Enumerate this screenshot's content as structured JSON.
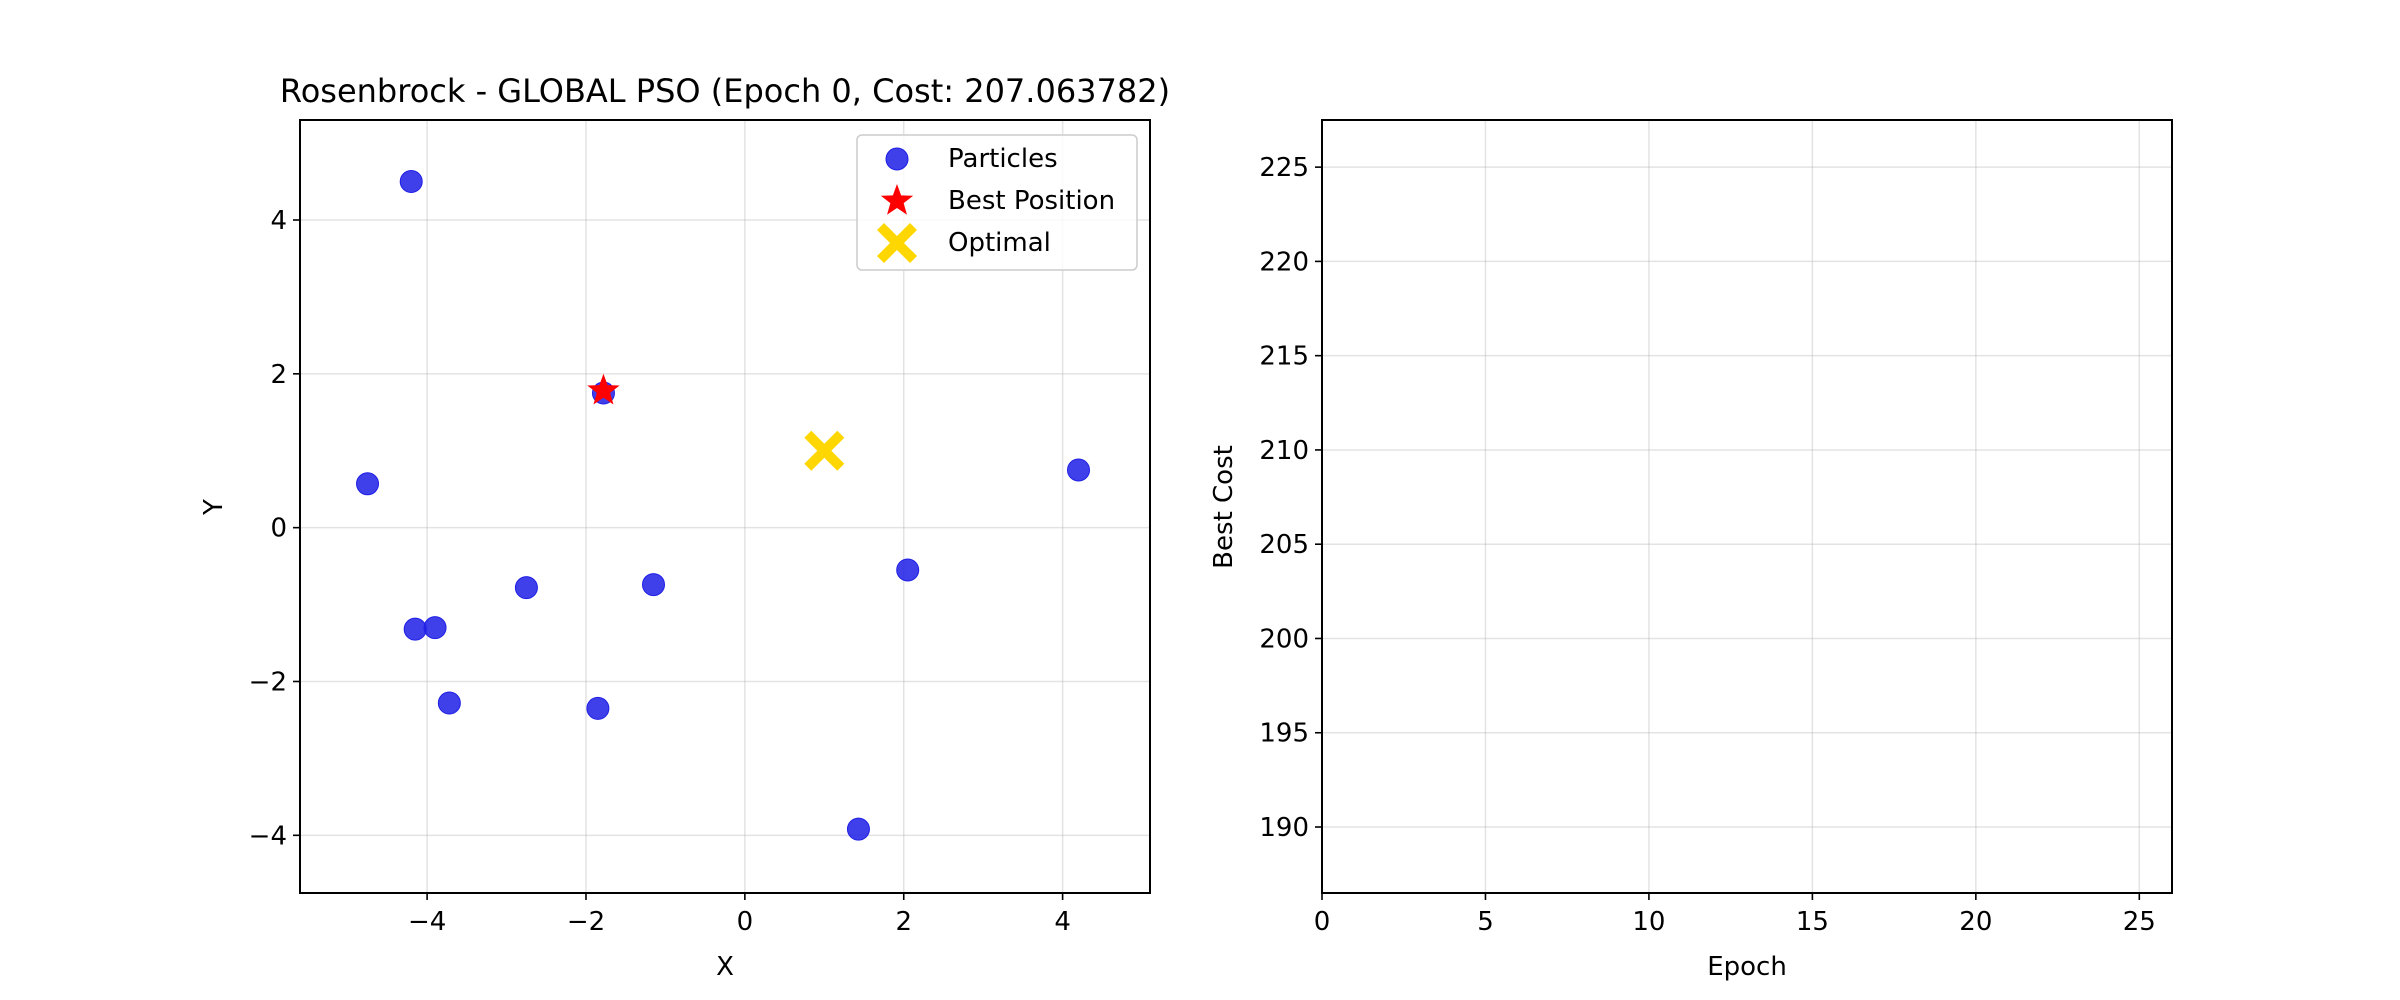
{
  "chart_data": [
    {
      "type": "scatter",
      "title": "Rosenbrock - GLOBAL PSO (Epoch 0, Cost: 207.063782)",
      "xlabel": "X",
      "ylabel": "Y",
      "xlim": [
        -5.6,
        5.1
      ],
      "ylim": [
        -4.75,
        5.3
      ],
      "xticks": [
        -4,
        -2,
        0,
        2,
        4
      ],
      "yticks": [
        -4,
        -2,
        0,
        2,
        4
      ],
      "xtick_labels": [
        "−4",
        "−2",
        "0",
        "2",
        "4"
      ],
      "ytick_labels": [
        "−4",
        "−2",
        "0",
        "2",
        "4"
      ],
      "grid": true,
      "legend_position": "top-right",
      "series": [
        {
          "name": "Particles",
          "color": "#1f1fe6",
          "marker": "circle",
          "points": [
            {
              "x": -4.2,
              "y": 4.5
            },
            {
              "x": -4.75,
              "y": 0.57
            },
            {
              "x": -1.78,
              "y": 1.75
            },
            {
              "x": -4.15,
              "y": -1.32
            },
            {
              "x": -3.9,
              "y": -1.3
            },
            {
              "x": -2.75,
              "y": -0.78
            },
            {
              "x": -1.15,
              "y": -0.74
            },
            {
              "x": -3.72,
              "y": -2.28
            },
            {
              "x": -1.85,
              "y": -2.35
            },
            {
              "x": 1.43,
              "y": -3.92
            },
            {
              "x": 2.05,
              "y": -0.55
            },
            {
              "x": 4.2,
              "y": 0.75
            }
          ]
        },
        {
          "name": "Best Position",
          "color": "#ff0000",
          "marker": "star",
          "points": [
            {
              "x": -1.78,
              "y": 1.78
            }
          ]
        },
        {
          "name": "Optimal",
          "color": "#ffd700",
          "marker": "x",
          "points": [
            {
              "x": 1.0,
              "y": 1.0
            }
          ]
        }
      ]
    },
    {
      "type": "line",
      "title": "",
      "xlabel": "Epoch",
      "ylabel": "Best Cost",
      "xlim": [
        0,
        26
      ],
      "ylim": [
        186.5,
        227.5
      ],
      "xticks": [
        0,
        5,
        10,
        15,
        20,
        25
      ],
      "yticks": [
        190,
        195,
        200,
        205,
        210,
        215,
        220,
        225
      ],
      "xtick_labels": [
        "0",
        "5",
        "10",
        "15",
        "20",
        "25"
      ],
      "ytick_labels": [
        "190",
        "195",
        "200",
        "205",
        "210",
        "215",
        "220",
        "225"
      ],
      "grid": true,
      "series": []
    }
  ]
}
